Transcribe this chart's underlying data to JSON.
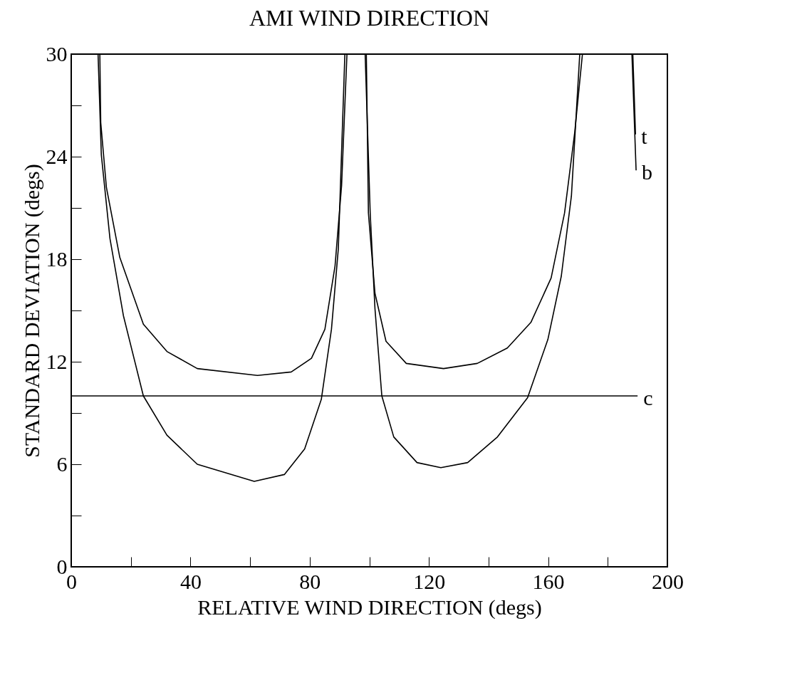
{
  "chart_data": {
    "type": "line",
    "title": "AMI WIND DIRECTION",
    "xlabel": "RELATIVE WIND DIRECTION (degs)",
    "ylabel": "STANDARD DEVIATION (degs)",
    "xlim": [
      0,
      200
    ],
    "ylim": [
      0,
      30
    ],
    "xticks": [
      0,
      {
        "value": 20,
        "label": null
      },
      40,
      {
        "value": 60,
        "label": null
      },
      80,
      {
        "value": 100,
        "label": null
      },
      120,
      {
        "value": 140,
        "label": null
      },
      160,
      {
        "value": 180,
        "label": null
      },
      200
    ],
    "yticks": [
      0,
      {
        "value": 3,
        "label": null
      },
      6,
      {
        "value": 9,
        "label": null
      },
      12,
      {
        "value": 15,
        "label": null
      },
      18,
      {
        "value": 21,
        "label": null
      },
      24,
      {
        "value": 27,
        "label": null
      },
      30
    ],
    "grid": false,
    "legend": "right",
    "marker": "none",
    "line_style": "solid",
    "series": [
      {
        "name": "t",
        "color": "#000000",
        "x": [
          9.6,
          9.9,
          11.8,
          16.3,
          24.2,
          32.1,
          42.3,
          62.5,
          73.8,
          80.6,
          85.1,
          88.5,
          90.7,
          92.5,
          95,
          99,
          99.7,
          101.9,
          105.6,
          112.4,
          124.9,
          136.2,
          146.3,
          154.2,
          161,
          165.5,
          168.9,
          171.5,
          180,
          188.4,
          189.3
        ],
        "values": [
          30,
          26,
          22.2,
          18.1,
          14.2,
          12.6,
          11.6,
          11.2,
          11.4,
          12.2,
          13.9,
          17.6,
          22.3,
          30,
          null,
          30,
          20.7,
          16,
          13.2,
          11.9,
          11.6,
          11.9,
          12.8,
          14.3,
          16.9,
          20.7,
          25.4,
          30,
          null,
          30,
          25.3
        ]
      },
      {
        "name": "b",
        "color": "#000000",
        "x": [
          9,
          10.1,
          13,
          17.5,
          24.2,
          32.1,
          42.3,
          61.4,
          71.5,
          78.3,
          83.9,
          87.3,
          89.6,
          91.8,
          95,
          98.6,
          100.3,
          101.9,
          104.2,
          108.2,
          116,
          124,
          133,
          143,
          153.1,
          159.9,
          164.4,
          167.8,
          170.6,
          180,
          188.1,
          189.5
        ],
        "values": [
          30,
          24.1,
          19.2,
          14.7,
          10,
          7.7,
          6,
          5,
          5.4,
          6.9,
          9.8,
          13.9,
          18.6,
          30,
          null,
          30,
          20.7,
          15.1,
          10,
          7.6,
          6.1,
          5.8,
          6.1,
          7.6,
          9.9,
          13.3,
          17,
          21.7,
          30,
          null,
          30,
          23.2
        ]
      },
      {
        "name": "c",
        "color": "#000000",
        "x": [
          0,
          190
        ],
        "values": [
          10,
          10
        ]
      }
    ]
  }
}
